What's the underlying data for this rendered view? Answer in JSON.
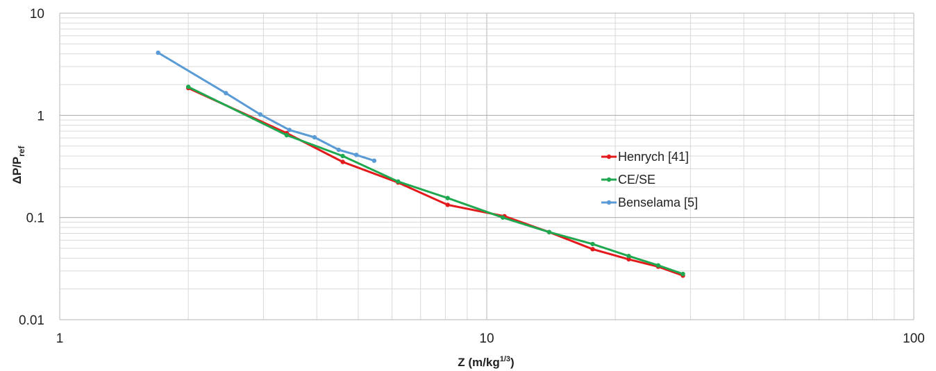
{
  "chart_data": {
    "type": "line",
    "xscale": "log",
    "yscale": "log",
    "xlim": [
      1,
      100
    ],
    "ylim": [
      0.01,
      10
    ],
    "grid": true,
    "legend_position": "right-center",
    "xlabel": "Z (m/kg",
    "xlabel_sup": "1/3",
    "xlabel_end": ")",
    "ylabel": "ΔP/P",
    "ylabel_sub": "ref",
    "x_ticks": [
      {
        "value": 1,
        "label": "1"
      },
      {
        "value": 10,
        "label": "10"
      },
      {
        "value": 100,
        "label": "100"
      }
    ],
    "y_ticks": [
      {
        "value": 0.01,
        "label": "0.01"
      },
      {
        "value": 0.1,
        "label": "0.1"
      },
      {
        "value": 1,
        "label": "1"
      },
      {
        "value": 10,
        "label": "10"
      }
    ],
    "series": [
      {
        "name": "Henrych [41]",
        "color": "#e31a1c",
        "points": [
          [
            2,
            1.85
          ],
          [
            3.4,
            0.67
          ],
          [
            4.6,
            0.35
          ],
          [
            6.2,
            0.22
          ],
          [
            8.1,
            0.133
          ],
          [
            11,
            0.103
          ],
          [
            14,
            0.072
          ],
          [
            17.7,
            0.049
          ],
          [
            21.5,
            0.039
          ],
          [
            25.2,
            0.033
          ],
          [
            28.8,
            0.027
          ]
        ]
      },
      {
        "name": "CE/SE",
        "color": "#1fa84f",
        "points": [
          [
            2,
            1.9
          ],
          [
            3.4,
            0.64
          ],
          [
            4.6,
            0.4
          ],
          [
            6.2,
            0.225
          ],
          [
            8.1,
            0.155
          ],
          [
            10.9,
            0.1
          ],
          [
            14,
            0.072
          ],
          [
            17.7,
            0.055
          ],
          [
            21.5,
            0.042
          ],
          [
            25.2,
            0.034
          ],
          [
            28.8,
            0.028
          ]
        ]
      },
      {
        "name": "Benselama [5]",
        "color": "#5b9bd5",
        "points": [
          [
            1.7,
            4.1
          ],
          [
            2.45,
            1.65
          ],
          [
            2.95,
            1.02
          ],
          [
            3.45,
            0.72
          ],
          [
            3.95,
            0.61
          ],
          [
            4.5,
            0.46
          ],
          [
            4.95,
            0.41
          ],
          [
            5.45,
            0.36
          ]
        ]
      }
    ]
  }
}
